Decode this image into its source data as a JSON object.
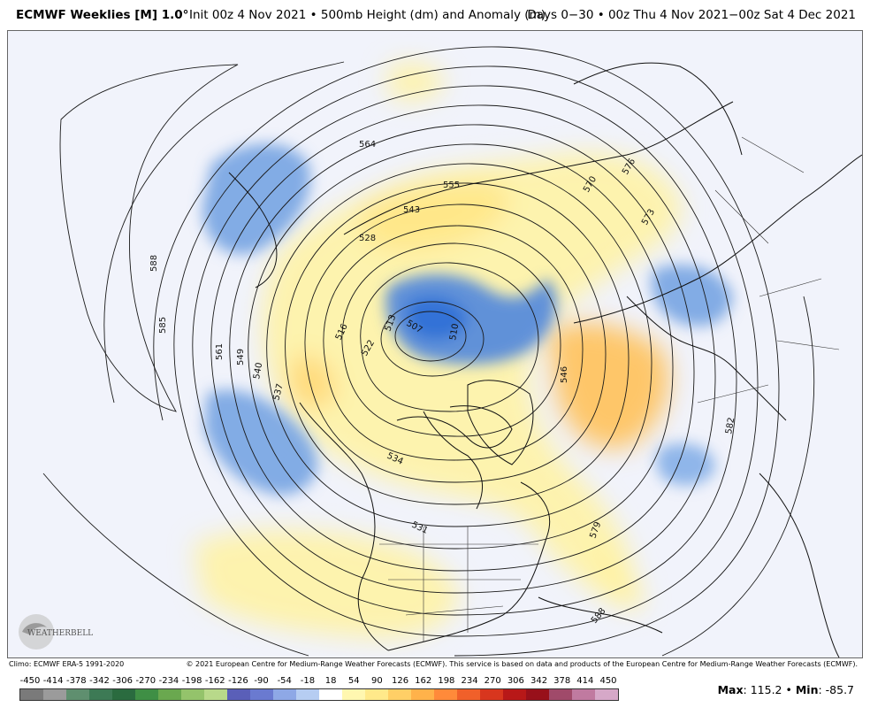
{
  "header": {
    "model": "ECMWF Weeklies [M] 1.0°",
    "init": "Init 00z 4 Nov 2021 • 500mb Height (dm) and Anomaly (m)",
    "days": "Days 0−30 • 00z Thu 4 Nov 2021−00z Sat 4 Dec 2021"
  },
  "map": {
    "projection": "north-polar-stereographic",
    "ocean_color": "#f1f3fb",
    "coast_color": "#111111",
    "contour_color": "#1a1a1a",
    "contour_labels": [
      "564",
      "555",
      "543",
      "528",
      "570",
      "576",
      "573",
      "588",
      "585",
      "561",
      "549",
      "540",
      "537",
      "522",
      "516",
      "513",
      "507",
      "510",
      "546",
      "534",
      "531",
      "582",
      "579",
      "588"
    ],
    "anomaly_features": [
      {
        "type": "negative",
        "region": "Bering Sea / Aleutians"
      },
      {
        "type": "negative",
        "region": "Arctic / Laptev Sea"
      },
      {
        "type": "negative",
        "region": "Northeast Pacific"
      },
      {
        "type": "negative",
        "region": "North Atlantic / western Europe"
      },
      {
        "type": "negative",
        "region": "Central Atlantic"
      },
      {
        "type": "positive",
        "region": "Western Canada / Alaska"
      },
      {
        "type": "positive",
        "region": "Northern Eurasia"
      },
      {
        "type": "positive",
        "region": "Greenland / Atlantic"
      },
      {
        "type": "positive",
        "region": "Southern US / subtropical Pacific"
      }
    ]
  },
  "logo": {
    "text": "WEATHERBELL"
  },
  "footer": {
    "climo": "Climo: ECMWF ERA-5 1991-2020",
    "copyright": "© 2021 European Centre for Medium-Range Weather Forecasts (ECMWF). This service is based on data and products of the European Centre for Medium-Range Weather Forecasts (ECMWF)."
  },
  "colorbar": {
    "labels": [
      "-450",
      "-414",
      "-378",
      "-342",
      "-306",
      "-270",
      "-234",
      "-198",
      "-162",
      "-126",
      "-90",
      "-54",
      "-18",
      "18",
      "54",
      "90",
      "126",
      "162",
      "198",
      "234",
      "270",
      "306",
      "342",
      "378",
      "414",
      "450"
    ],
    "colors": [
      "#7a7a7a",
      "#9b9b9b",
      "#5f8f6f",
      "#3d7a55",
      "#2a6b3f",
      "#3f8f45",
      "#6aa84f",
      "#94c36b",
      "#b8d98a",
      "#5a5fb8",
      "#6a7ad0",
      "#8ea8e6",
      "#b6cdf2",
      "#ffffff",
      "#fff7b0",
      "#ffe98a",
      "#ffcf66",
      "#ffb24a",
      "#ff8a3a",
      "#f0602a",
      "#d8361e",
      "#b81818",
      "#98101a",
      "#a04a6a",
      "#c07aa0",
      "#d6a8c8"
    ]
  },
  "stats": {
    "max_label": "Max",
    "max": "115.2",
    "min_label": "Min",
    "min": "-85.7"
  }
}
